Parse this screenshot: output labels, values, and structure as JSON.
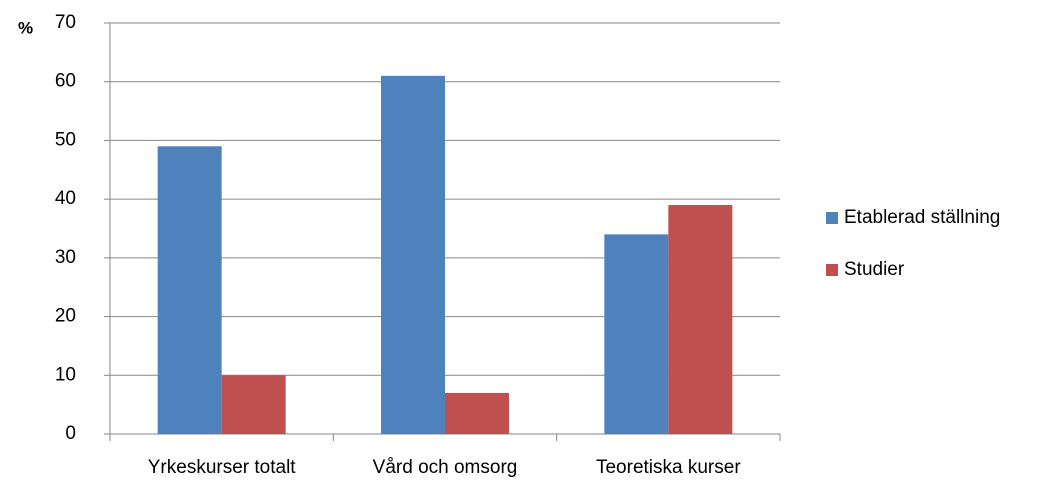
{
  "chart_data": {
    "type": "bar",
    "y_label": "%",
    "categories": [
      "Yrkeskurser totalt",
      "Vård och omsorg",
      "Teoretiska kurser"
    ],
    "series": [
      {
        "name": "Etablerad ställning",
        "color": "#4f81bd",
        "values": [
          49,
          61,
          34
        ]
      },
      {
        "name": "Studier",
        "color": "#c0504d",
        "values": [
          10,
          7,
          39
        ]
      }
    ],
    "ylim": [
      0,
      70
    ],
    "yticks": [
      0,
      10,
      20,
      30,
      40,
      50,
      60,
      70
    ],
    "grid": true,
    "legend": "right"
  }
}
